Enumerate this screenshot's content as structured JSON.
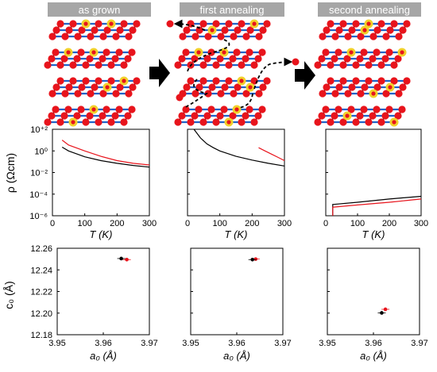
{
  "headers": [
    "as grown",
    "first annealing",
    "second annealing"
  ],
  "colors": {
    "oxygen": "#e8141c",
    "metal": "#f2d12a",
    "bond": "#1f63c9",
    "header_bg": "#a6a6a6",
    "series_a": "#000000",
    "series_b": "#e8141c"
  },
  "resistivity": {
    "ylabel": "ρ (Ωcm)",
    "ytick_labels": [
      "10⁺²",
      "10⁰",
      "10⁻²",
      "10⁻⁴",
      "10⁻⁶"
    ],
    "xtick_labels": [
      "0",
      "100",
      "200",
      "300"
    ],
    "xlabel": "T (K)",
    "xlim": [
      0,
      300
    ],
    "ylim_log10": [
      -6,
      2
    ],
    "panels": [
      {
        "black": {
          "x": [
            30,
            50,
            100,
            150,
            200,
            250,
            300
          ],
          "log10_y": [
            0.35,
            0.0,
            -0.55,
            -0.9,
            -1.15,
            -1.35,
            -1.5
          ]
        },
        "red": {
          "x": [
            30,
            50,
            100,
            150,
            200,
            250,
            300
          ],
          "log10_y": [
            1.0,
            0.55,
            0.0,
            -0.5,
            -0.9,
            -1.15,
            -1.3
          ]
        }
      },
      {
        "black": {
          "x": [
            20,
            40,
            60,
            80,
            100,
            150,
            200,
            250,
            300
          ],
          "log10_y": [
            2.0,
            1.2,
            0.65,
            0.3,
            0.0,
            -0.5,
            -0.85,
            -1.15,
            -1.4
          ]
        },
        "red": {
          "x": [
            220,
            240,
            260,
            280,
            300
          ],
          "log10_y": [
            0.3,
            0.0,
            -0.3,
            -0.6,
            -0.9
          ]
        }
      },
      {
        "black": {
          "x": [
            25,
            100,
            200,
            300
          ],
          "log10_y": [
            -4.95,
            -4.75,
            -4.45,
            -4.2
          ],
          "drop_at": 22
        },
        "red": {
          "x": [
            25,
            100,
            200,
            300
          ],
          "log10_y": [
            -5.2,
            -5.0,
            -4.75,
            -4.45
          ],
          "drop_at": 22
        }
      }
    ]
  },
  "lattice": {
    "ylabel": "c₀ (Å)",
    "xlabel": "a₀ (Å)",
    "ytick_labels": [
      "12.26",
      "12.24",
      "12.22",
      "12.20",
      "12.18"
    ],
    "xtick_labels": [
      "3.95",
      "3.96",
      "3.97"
    ],
    "xlim": [
      3.95,
      3.97
    ],
    "ylim": [
      12.18,
      12.26
    ],
    "panels": [
      {
        "black": {
          "a": 3.9639,
          "c": 12.2505
        },
        "red": {
          "a": 3.9651,
          "c": 12.2495
        }
      },
      {
        "black": {
          "a": 3.9634,
          "c": 12.2495
        },
        "red": {
          "a": 3.9641,
          "c": 12.25
        }
      },
      {
        "black": {
          "a": 3.9618,
          "c": 12.2002
        },
        "red": {
          "a": 3.9626,
          "c": 12.2035
        }
      }
    ]
  }
}
